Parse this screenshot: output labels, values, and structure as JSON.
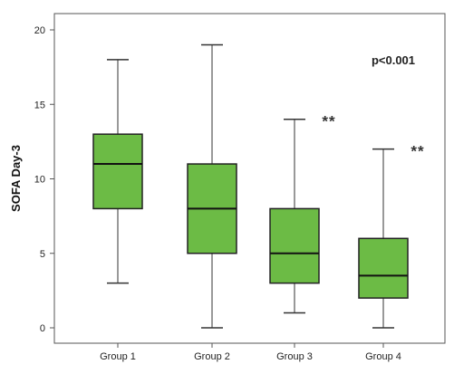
{
  "chart_data": {
    "type": "box",
    "ylabel": "SOFA Day-3",
    "ylim": [
      -1,
      21
    ],
    "yticks": [
      0,
      5,
      10,
      15,
      20
    ],
    "grid": false,
    "box_color": "#6cbb45",
    "annotation": "p<0.001",
    "categories": [
      "Group 1",
      "Group 2",
      "Group 3",
      "Group 4"
    ],
    "boxes": [
      {
        "category": "Group 1",
        "min": 3,
        "q1": 8,
        "median": 11,
        "q3": 13,
        "max": 18,
        "marker": ""
      },
      {
        "category": "Group 2",
        "min": 0,
        "q1": 5,
        "median": 8,
        "q3": 11,
        "max": 19,
        "marker": ""
      },
      {
        "category": "Group 3",
        "min": 1,
        "q1": 3,
        "median": 5,
        "q3": 8,
        "max": 14,
        "marker": "**"
      },
      {
        "category": "Group 4",
        "min": 0,
        "q1": 2,
        "median": 3.5,
        "q3": 6,
        "max": 12,
        "marker": "**"
      }
    ]
  }
}
